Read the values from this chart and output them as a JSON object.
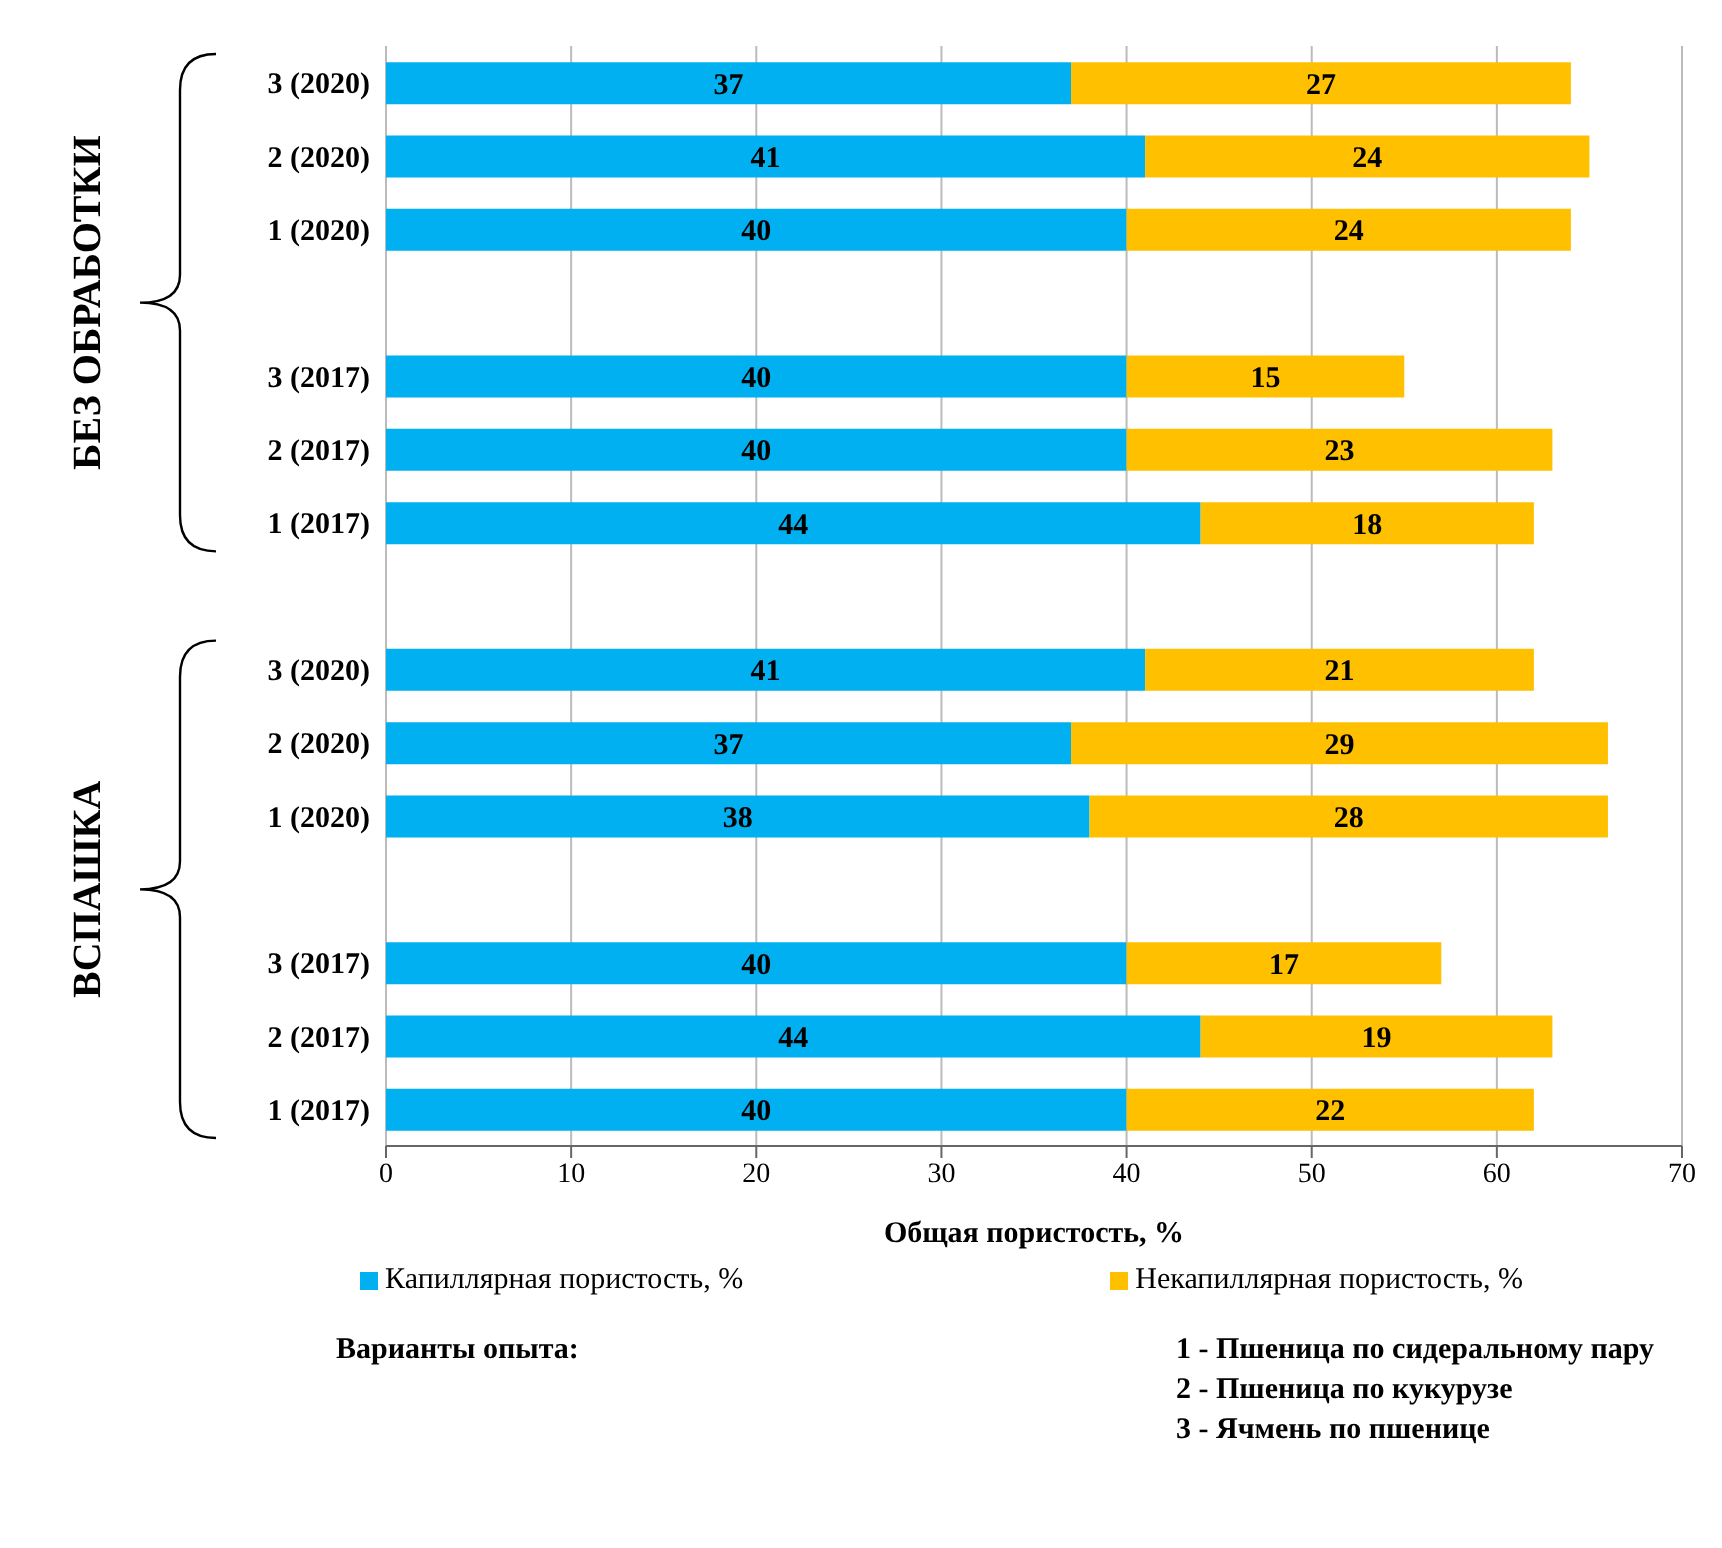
{
  "chart_data": {
    "type": "bar",
    "orientation": "horizontal",
    "stacked": true,
    "categories": [
      "3 (2020)",
      "2 (2020)",
      "1 (2020)",
      null,
      "3 (2017)",
      "2 (2017)",
      "1 (2017)",
      null,
      "3 (2020)",
      "2 (2020)",
      "1 (2020)",
      null,
      "3 (2017)",
      "2 (2017)",
      "1 (2017)"
    ],
    "series": [
      {
        "name": "Капиллярная пористость, %",
        "color": "#00b0f0",
        "values": [
          37,
          41,
          40,
          null,
          40,
          40,
          44,
          null,
          41,
          37,
          38,
          null,
          40,
          44,
          40
        ]
      },
      {
        "name": "Некапиллярная пористость, %",
        "color": "#ffc000",
        "values": [
          27,
          24,
          24,
          null,
          15,
          23,
          18,
          null,
          21,
          29,
          28,
          null,
          17,
          19,
          22
        ]
      }
    ],
    "xlim": [
      0,
      70
    ],
    "xticks": [
      0,
      10,
      20,
      30,
      40,
      50,
      60,
      70
    ],
    "xlabel": "Общая пористость, %",
    "grid": "x",
    "legend": "bottom",
    "data_labels": true,
    "annotations": [
      "БЕЗ ОБРАБОТКИ",
      "ВСПАШКА",
      "Варианты опыта:",
      "1 - Пшеница по сидеральному пару",
      "2 - Пшеница по кукурузе",
      "3 - Ячмень по пшенице"
    ]
  }
}
